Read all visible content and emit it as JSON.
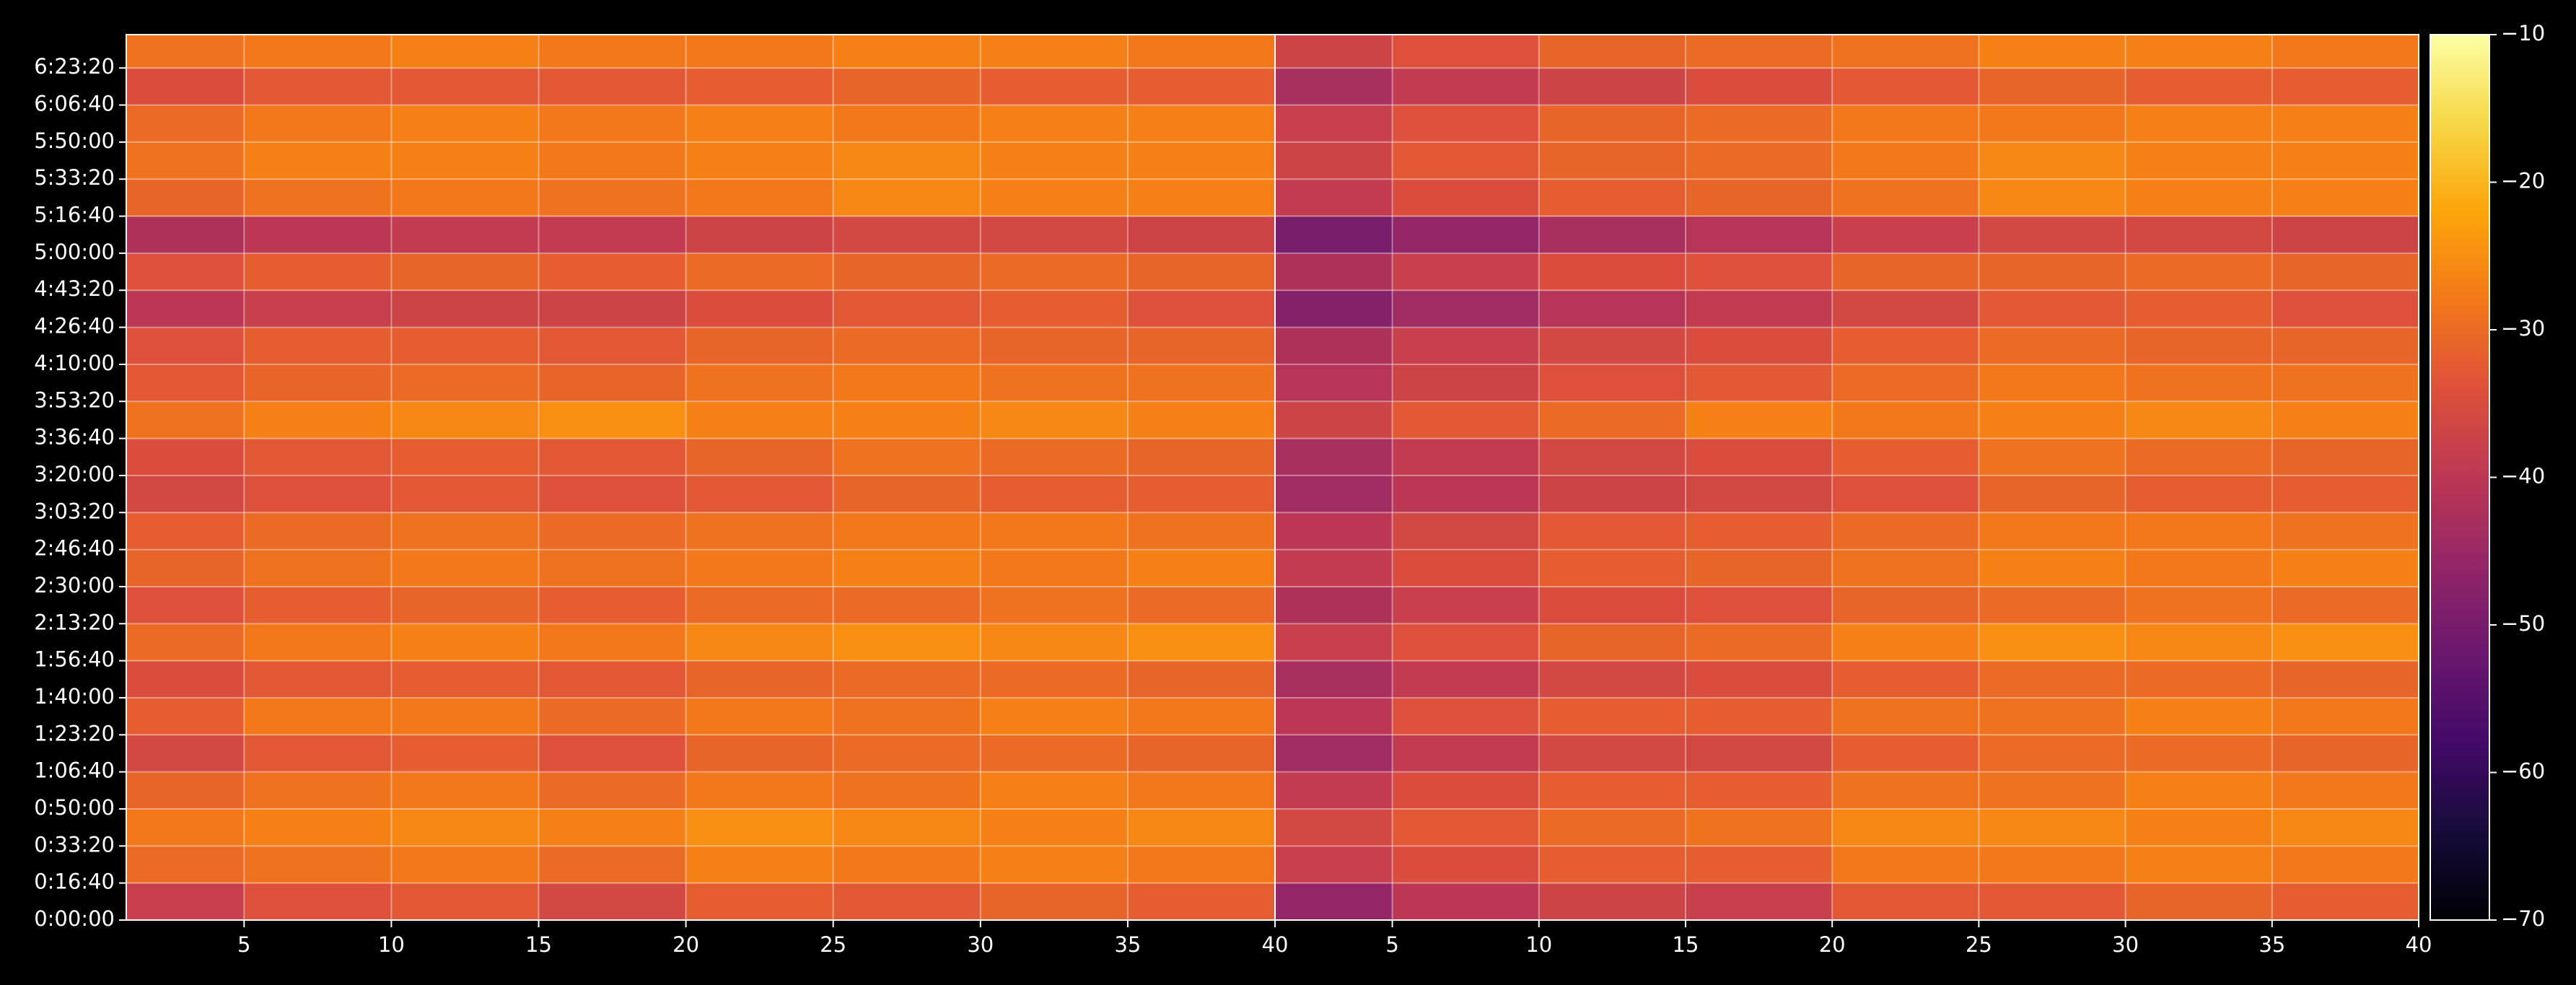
{
  "chart_data": [
    {
      "type": "heatmap",
      "xlim": [
        1,
        40
      ],
      "xticks": [
        5,
        10,
        15,
        20,
        25,
        30,
        35,
        40
      ],
      "ylim": [
        0,
        23900
      ],
      "yticks": [
        {
          "value": 0,
          "label": "0:00:00"
        },
        {
          "value": 1000,
          "label": "0:16:40"
        },
        {
          "value": 2000,
          "label": "0:33:20"
        },
        {
          "value": 3000,
          "label": "0:50:00"
        },
        {
          "value": 4000,
          "label": "1:06:40"
        },
        {
          "value": 5000,
          "label": "1:23:20"
        },
        {
          "value": 6000,
          "label": "1:40:00"
        },
        {
          "value": 7000,
          "label": "1:56:40"
        },
        {
          "value": 8000,
          "label": "2:13:20"
        },
        {
          "value": 9000,
          "label": "2:30:00"
        },
        {
          "value": 10000,
          "label": "2:46:40"
        },
        {
          "value": 11000,
          "label": "3:03:20"
        },
        {
          "value": 12000,
          "label": "3:20:00"
        },
        {
          "value": 13000,
          "label": "3:36:40"
        },
        {
          "value": 14000,
          "label": "3:53:20"
        },
        {
          "value": 15000,
          "label": "4:10:00"
        },
        {
          "value": 16000,
          "label": "4:26:40"
        },
        {
          "value": 17000,
          "label": "4:43:20"
        },
        {
          "value": 18000,
          "label": "5:00:00"
        },
        {
          "value": 19000,
          "label": "5:16:40"
        },
        {
          "value": 20000,
          "label": "5:33:20"
        },
        {
          "value": 21000,
          "label": "5:50:00"
        },
        {
          "value": 22000,
          "label": "6:06:40"
        },
        {
          "value": 23000,
          "label": "6:23:20"
        }
      ],
      "x_edges": [
        1,
        5,
        10,
        15,
        20,
        25,
        30,
        35,
        40
      ],
      "y_edges": [
        0,
        1000,
        2000,
        3000,
        4000,
        5000,
        6000,
        7000,
        8000,
        9000,
        10000,
        11000,
        12000,
        13000,
        14000,
        15000,
        16000,
        17000,
        18000,
        19000,
        20000,
        21000,
        22000,
        23000,
        23900
      ],
      "grid": true,
      "z": [
        [
          -38,
          -34,
          -33,
          -36,
          -32,
          -33,
          -31,
          -32
        ],
        [
          -30,
          -29,
          -28,
          -30,
          -27,
          -28,
          -27,
          -28
        ],
        [
          -28,
          -27,
          -26,
          -27,
          -25,
          -26,
          -27,
          -26
        ],
        [
          -31,
          -29,
          -28,
          -30,
          -28,
          -29,
          -27,
          -28
        ],
        [
          -36,
          -33,
          -32,
          -34,
          -31,
          -30,
          -30,
          -31
        ],
        [
          -32,
          -28,
          -28,
          -30,
          -28,
          -29,
          -27,
          -28
        ],
        [
          -35,
          -33,
          -32,
          -33,
          -31,
          -30,
          -30,
          -31
        ],
        [
          -30,
          -28,
          -27,
          -28,
          -26,
          -25,
          -26,
          -25
        ],
        [
          -34,
          -32,
          -31,
          -32,
          -30,
          -30,
          -29,
          -30
        ],
        [
          -31,
          -29,
          -28,
          -29,
          -28,
          -27,
          -28,
          -27
        ],
        [
          -32,
          -30,
          -29,
          -30,
          -29,
          -28,
          -28,
          -29
        ],
        [
          -36,
          -34,
          -33,
          -34,
          -33,
          -31,
          -32,
          -32
        ],
        [
          -35,
          -33,
          -32,
          -33,
          -31,
          -29,
          -30,
          -31
        ],
        [
          -29,
          -27,
          -26,
          -25,
          -27,
          -27,
          -26,
          -27
        ],
        [
          -33,
          -31,
          -30,
          -31,
          -29,
          -28,
          -29,
          -29
        ],
        [
          -34,
          -32,
          -32,
          -33,
          -31,
          -30,
          -31,
          -31
        ],
        [
          -40,
          -38,
          -37,
          -37,
          -35,
          -33,
          -32,
          -34
        ],
        [
          -34,
          -32,
          -31,
          -32,
          -30,
          -31,
          -30,
          -31
        ],
        [
          -42,
          -40,
          -39,
          -39,
          -37,
          -36,
          -36,
          -37
        ],
        [
          -31,
          -29,
          -28,
          -29,
          -28,
          -26,
          -27,
          -27
        ],
        [
          -29,
          -27,
          -27,
          -28,
          -27,
          -26,
          -27,
          -27
        ],
        [
          -30,
          -28,
          -27,
          -28,
          -27,
          -28,
          -27,
          -27
        ],
        [
          -35,
          -33,
          -33,
          -33,
          -32,
          -31,
          -32,
          -32
        ],
        [
          -29,
          -28,
          -27,
          -28,
          -28,
          -27,
          -27,
          -28
        ]
      ]
    },
    {
      "type": "heatmap",
      "xlim": [
        1,
        40
      ],
      "xticks": [
        5,
        10,
        15,
        20,
        25,
        30,
        35,
        40
      ],
      "ylim": [
        0,
        23900
      ],
      "x_edges": [
        1,
        5,
        10,
        15,
        20,
        25,
        30,
        35,
        40
      ],
      "y_edges": [
        0,
        1000,
        2000,
        3000,
        4000,
        5000,
        6000,
        7000,
        8000,
        9000,
        10000,
        11000,
        12000,
        13000,
        14000,
        15000,
        16000,
        17000,
        18000,
        19000,
        20000,
        21000,
        22000,
        23000,
        23900
      ],
      "grid": true,
      "z": [
        [
          -46,
          -40,
          -37,
          -38,
          -33,
          -33,
          -31,
          -32
        ],
        [
          -38,
          -35,
          -32,
          -32,
          -28,
          -28,
          -27,
          -28
        ],
        [
          -36,
          -33,
          -30,
          -29,
          -26,
          -26,
          -27,
          -26
        ],
        [
          -39,
          -35,
          -32,
          -32,
          -29,
          -29,
          -27,
          -28
        ],
        [
          -44,
          -39,
          -36,
          -36,
          -32,
          -30,
          -30,
          -31
        ],
        [
          -40,
          -34,
          -32,
          -32,
          -29,
          -29,
          -27,
          -28
        ],
        [
          -43,
          -39,
          -36,
          -35,
          -32,
          -30,
          -30,
          -31
        ],
        [
          -38,
          -34,
          -31,
          -30,
          -27,
          -25,
          -26,
          -25
        ],
        [
          -42,
          -38,
          -35,
          -34,
          -31,
          -30,
          -29,
          -30
        ],
        [
          -39,
          -35,
          -32,
          -31,
          -29,
          -27,
          -28,
          -27
        ],
        [
          -40,
          -36,
          -33,
          -32,
          -30,
          -28,
          -28,
          -29
        ],
        [
          -44,
          -40,
          -37,
          -36,
          -34,
          -31,
          -32,
          -32
        ],
        [
          -43,
          -39,
          -36,
          -35,
          -32,
          -29,
          -30,
          -31
        ],
        [
          -37,
          -33,
          -30,
          -27,
          -28,
          -27,
          -26,
          -27
        ],
        [
          -41,
          -37,
          -34,
          -33,
          -30,
          -28,
          -29,
          -29
        ],
        [
          -42,
          -38,
          -36,
          -35,
          -32,
          -30,
          -31,
          -31
        ],
        [
          -48,
          -44,
          -41,
          -39,
          -36,
          -33,
          -32,
          -34
        ],
        [
          -42,
          -38,
          -35,
          -34,
          -31,
          -31,
          -30,
          -31
        ],
        [
          -50,
          -46,
          -43,
          -41,
          -38,
          -36,
          -36,
          -37
        ],
        [
          -39,
          -35,
          -32,
          -31,
          -29,
          -26,
          -27,
          -27
        ],
        [
          -37,
          -33,
          -31,
          -30,
          -28,
          -26,
          -27,
          -27
        ],
        [
          -38,
          -34,
          -31,
          -30,
          -28,
          -28,
          -27,
          -27
        ],
        [
          -43,
          -39,
          -37,
          -35,
          -33,
          -31,
          -32,
          -32
        ],
        [
          -37,
          -34,
          -31,
          -30,
          -29,
          -27,
          -27,
          -28
        ]
      ]
    }
  ],
  "colorbar": {
    "colormap": "inferno",
    "clim": [
      -70,
      -10
    ],
    "ticks": [
      {
        "value": -70,
        "label": "−70"
      },
      {
        "value": -60,
        "label": "−60"
      },
      {
        "value": -50,
        "label": "−50"
      },
      {
        "value": -40,
        "label": "−40"
      },
      {
        "value": -30,
        "label": "−30"
      },
      {
        "value": -20,
        "label": "−20"
      },
      {
        "value": -10,
        "label": "−10"
      }
    ]
  }
}
